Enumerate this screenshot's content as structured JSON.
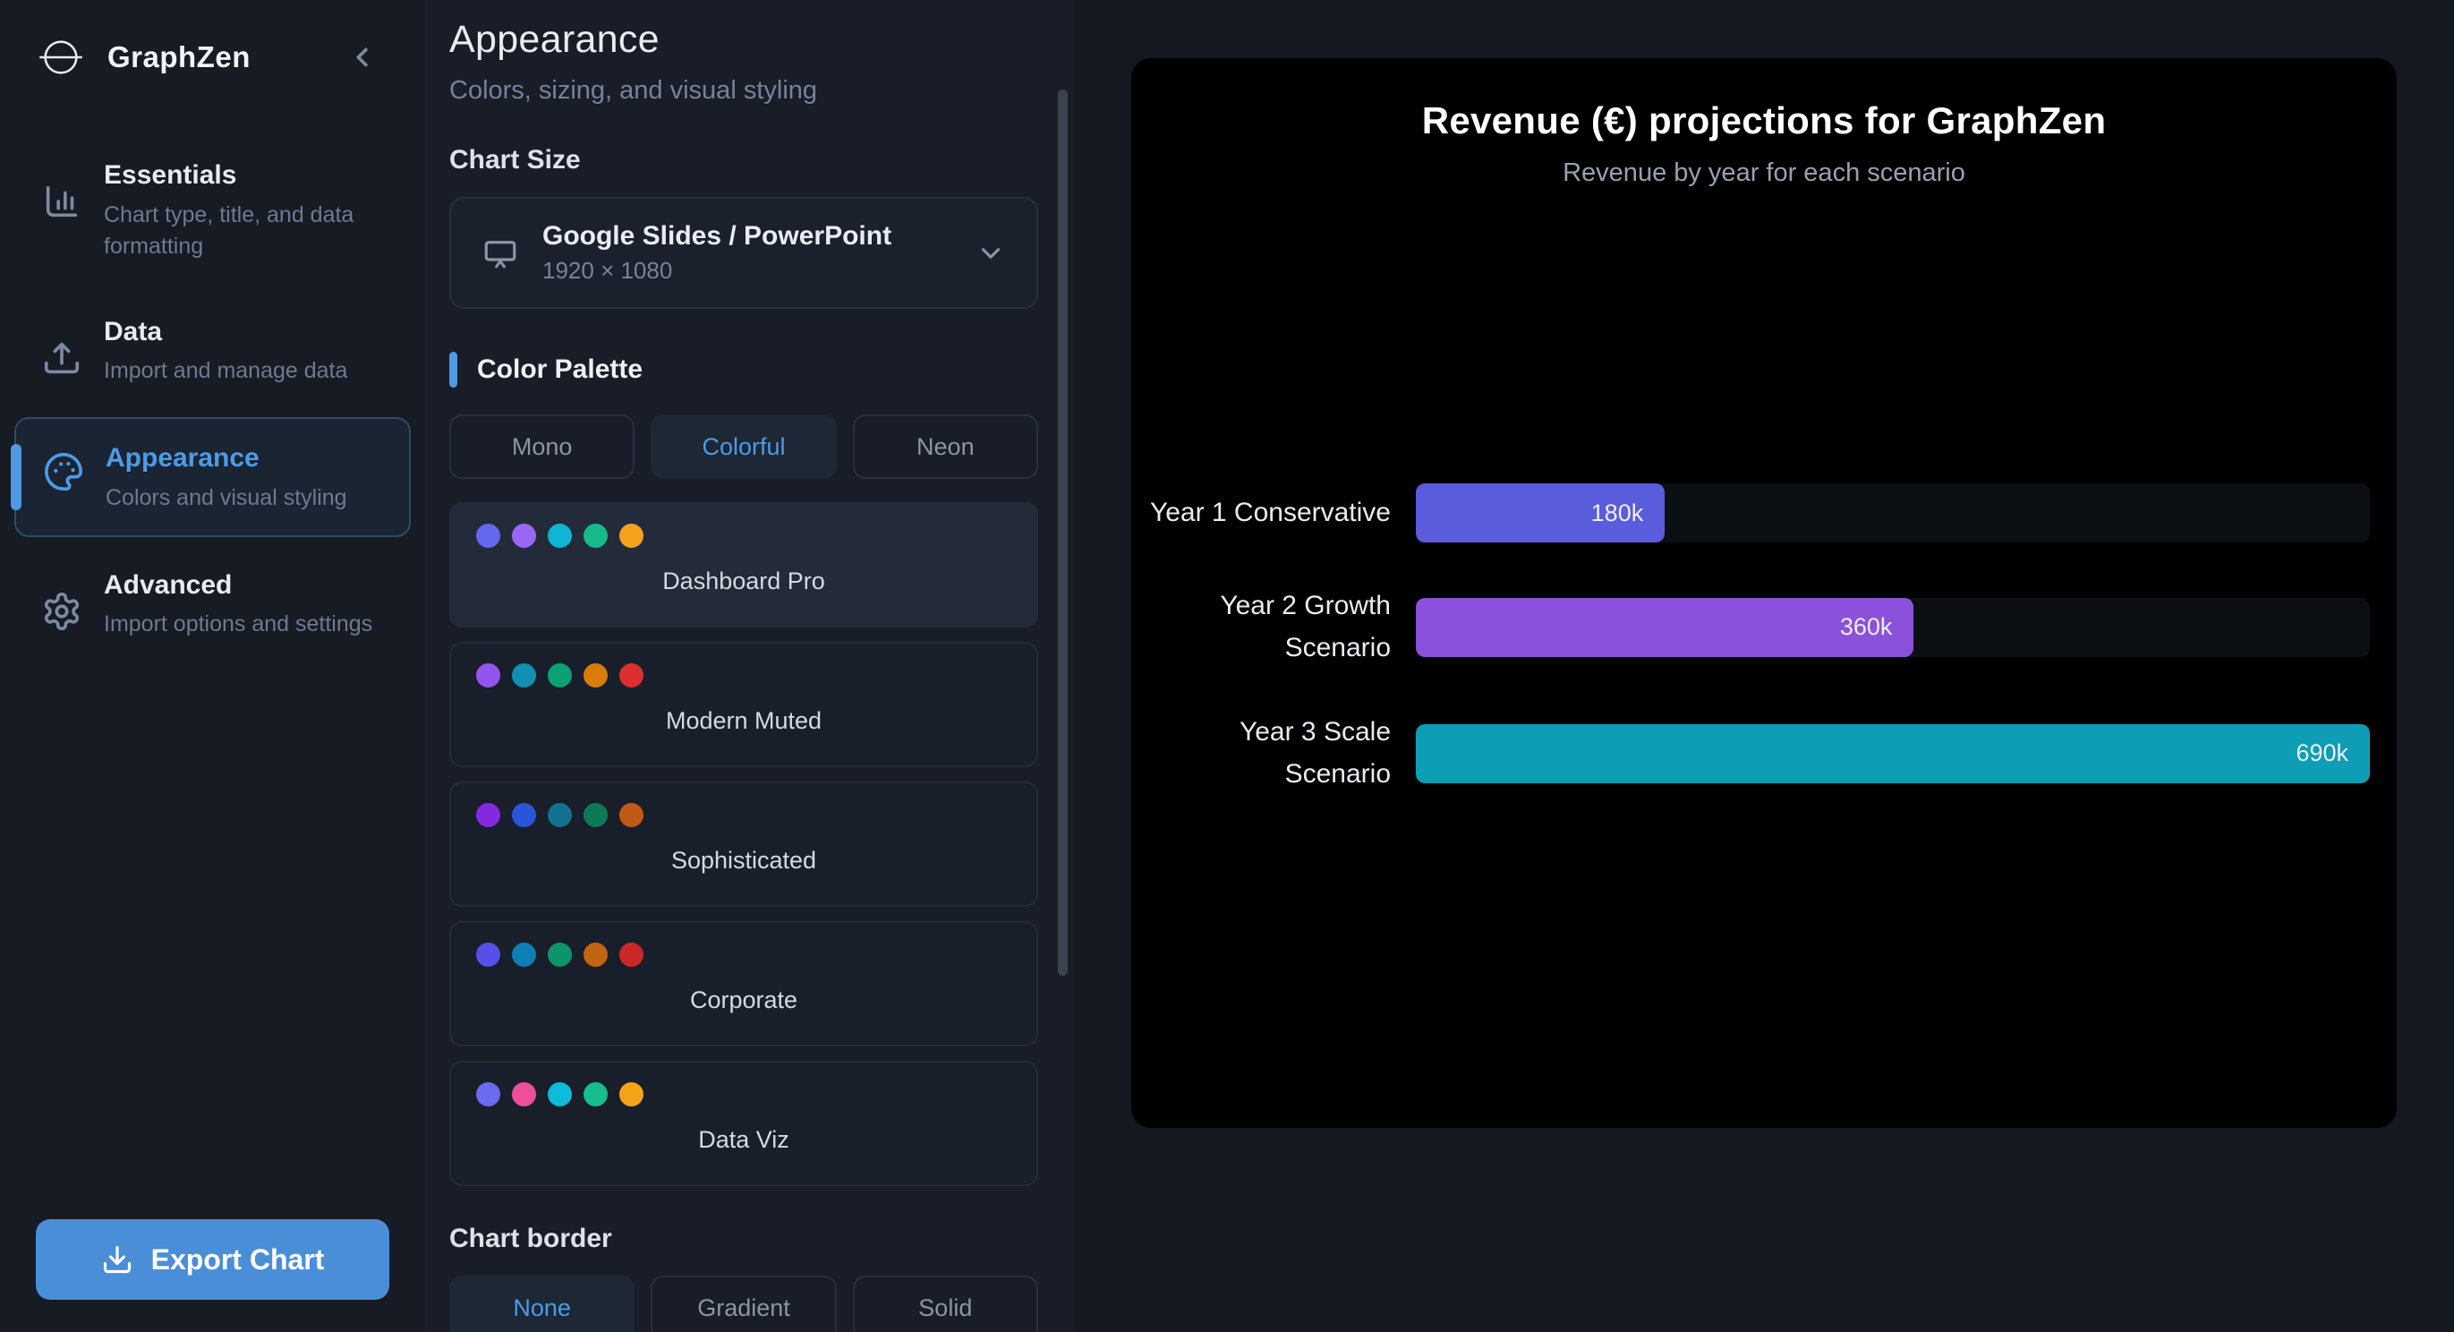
{
  "app": {
    "name": "GraphZen"
  },
  "sidebar": {
    "items": [
      {
        "label": "Essentials",
        "desc": "Chart type, title, and data formatting"
      },
      {
        "label": "Data",
        "desc": "Import and manage data"
      },
      {
        "label": "Appearance",
        "desc": "Colors and visual styling"
      },
      {
        "label": "Advanced",
        "desc": "Import options and settings"
      }
    ],
    "export_label": "Export Chart"
  },
  "panel": {
    "title": "Appearance",
    "subtitle": "Colors, sizing, and visual styling",
    "chart_size": {
      "label": "Chart Size",
      "selected": "Google Slides / PowerPoint",
      "dimensions": "1920 × 1080"
    },
    "color_palette": {
      "label": "Color Palette",
      "tabs": [
        {
          "label": "Mono"
        },
        {
          "label": "Colorful"
        },
        {
          "label": "Neon"
        }
      ],
      "palettes": [
        {
          "name": "Dashboard Pro",
          "colors": [
            "#6467f0",
            "#9a67f5",
            "#0cb6d4",
            "#16b98b",
            "#f5a11c"
          ]
        },
        {
          "name": "Modern Muted",
          "colors": [
            "#9155f0",
            "#118fb5",
            "#0ba173",
            "#d97c0a",
            "#dc2f2f"
          ]
        },
        {
          "name": "Sophisticated",
          "colors": [
            "#8429e0",
            "#2956d9",
            "#14718f",
            "#0d7a55",
            "#bf5a16"
          ]
        },
        {
          "name": "Corporate",
          "colors": [
            "#5551e8",
            "#0d7fb5",
            "#0d9468",
            "#c26410",
            "#cc2727"
          ]
        },
        {
          "name": "Data Viz",
          "colors": [
            "#6d6af2",
            "#ed4f9b",
            "#0cbcd9",
            "#16bd8d",
            "#f5a319"
          ]
        }
      ]
    },
    "chart_border": {
      "label": "Chart border",
      "options": [
        {
          "label": "None"
        },
        {
          "label": "Gradient"
        },
        {
          "label": "Solid"
        }
      ]
    }
  },
  "chart_data": {
    "type": "bar",
    "orientation": "horizontal",
    "title": "Revenue (€) projections for GraphZen",
    "subtitle": "Revenue by year for each scenario",
    "categories": [
      "Year 1 Conservative",
      "Year 2 Growth Scenario",
      "Year 3 Scale Scenario"
    ],
    "values": [
      180000,
      360000,
      690000
    ],
    "value_labels": [
      "180k",
      "360k",
      "690k"
    ],
    "bar_colors": [
      "#5b5cdb",
      "#8c51da",
      "#0d9db4"
    ],
    "bar_width_pct": [
      26.1,
      52.2,
      100
    ],
    "xlim": [
      0,
      690000
    ],
    "grid": false,
    "legend": false
  },
  "colors": {
    "accent": "#4d9be6",
    "export_button": "#4a8ed8"
  }
}
